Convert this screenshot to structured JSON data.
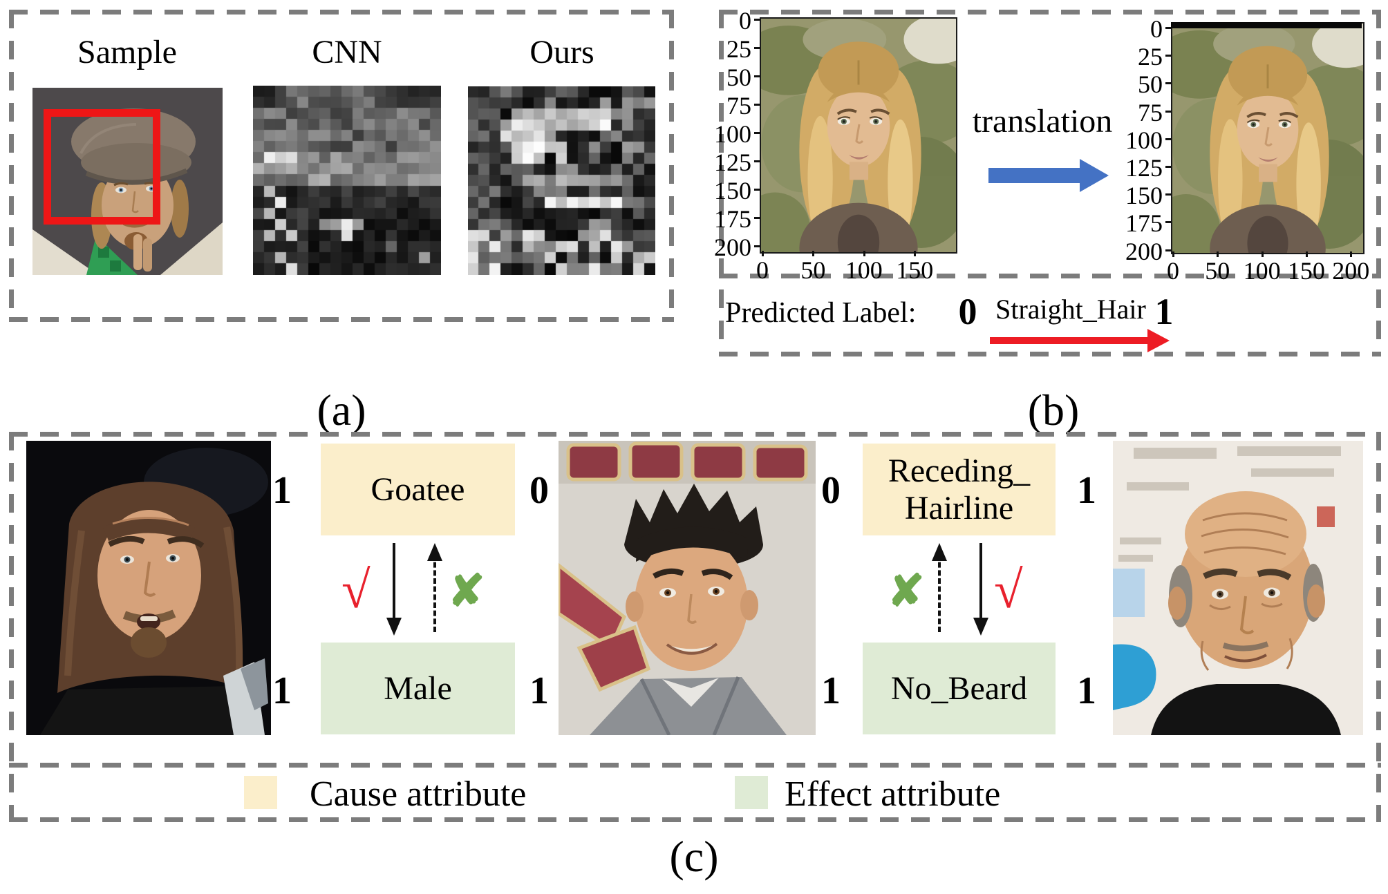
{
  "colors": {
    "dashed_border": "#7c7c7c",
    "bounding_box_red": "#ee1616",
    "translation_arrow_blue": "#4472c4",
    "attribute_arrow_red": "#ed1c24",
    "valid_mark_red": "#e8212d",
    "invalid_mark_green": "#6fa84f",
    "cause_fill": "#fbeecb",
    "effect_fill": "#dfebd5"
  },
  "icons": {
    "valid_mark": "√",
    "invalid_mark": "✘"
  },
  "heatmaps": {
    "cnn": {
      "rows": 17,
      "columns": 17,
      "seed": 7,
      "style": "cnn"
    },
    "ours": {
      "rows": 17,
      "columns": 17,
      "seed": 13,
      "style": "ours"
    }
  },
  "panels": {
    "a": {
      "caption": "(a)",
      "sample_title": "Sample",
      "cnn_title": "CNN",
      "ours_title": "Ours"
    },
    "b": {
      "caption": "(b)",
      "translation_label": "translation",
      "left_plot": {
        "y_ticks": [
          "0",
          "25",
          "50",
          "75",
          "100",
          "125",
          "150",
          "175",
          "200"
        ],
        "x_ticks": [
          "0",
          "50",
          "100",
          "150"
        ]
      },
      "right_plot": {
        "y_ticks": [
          "0",
          "25",
          "50",
          "75",
          "100",
          "125",
          "150",
          "175",
          "200"
        ],
        "x_ticks": [
          "0",
          "50",
          "100",
          "150",
          "200"
        ]
      },
      "predicted": {
        "prefix": "Predicted Label:",
        "from_value": "0",
        "attribute": "Straight_Hair",
        "to_value": "1"
      }
    },
    "c": {
      "caption": "(c)",
      "diagrams": [
        {
          "cause": {
            "lines": [
              "Goatee"
            ],
            "left_value": "1",
            "right_value": "0"
          },
          "effect": {
            "label": "Male",
            "left_value": "1",
            "right_value": "1"
          }
        },
        {
          "cause": {
            "lines": [
              "Receding_",
              "Hairline"
            ],
            "left_value": "0",
            "right_value": "1"
          },
          "effect": {
            "label": "No_Beard",
            "left_value": "1",
            "right_value": "1"
          }
        }
      ],
      "legend": [
        {
          "label": "Cause attribute"
        },
        {
          "label": "Effect attribute"
        }
      ]
    }
  }
}
